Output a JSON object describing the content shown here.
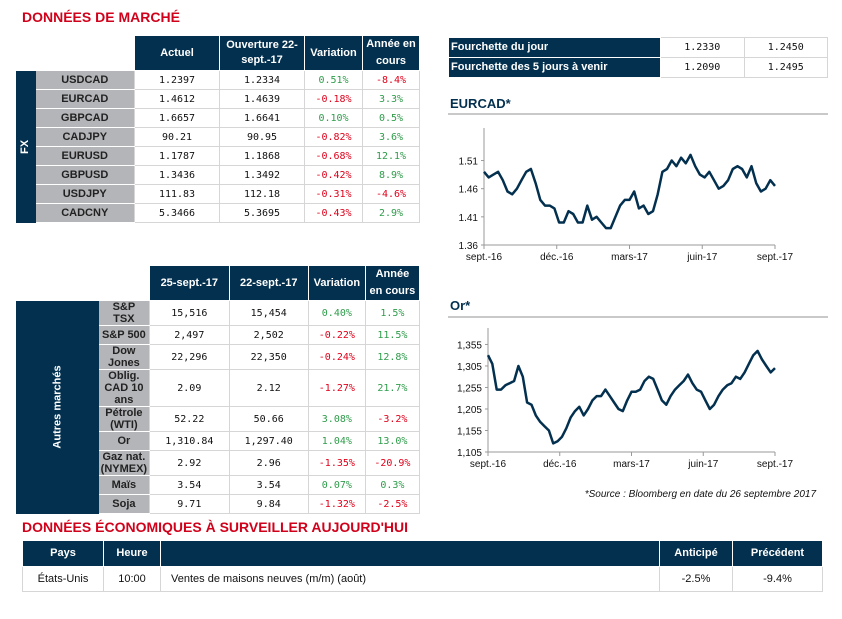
{
  "title": "DONNÉES DE MARCHÉ",
  "fx": {
    "side": "FX",
    "headers": [
      "Actuel",
      "Ouverture 22-sept.-17",
      "Variation",
      "Année en cours"
    ],
    "rows": [
      [
        "USDCAD",
        "1.2397",
        "1.2334",
        "0.51%",
        "-8.4%"
      ],
      [
        "EURCAD",
        "1.4612",
        "1.4639",
        "-0.18%",
        "3.3%"
      ],
      [
        "GBPCAD",
        "1.6657",
        "1.6641",
        "0.10%",
        "0.5%"
      ],
      [
        "CADJPY",
        "90.21",
        "90.95",
        "-0.82%",
        "3.6%"
      ],
      [
        "EURUSD",
        "1.1787",
        "1.1868",
        "-0.68%",
        "12.1%"
      ],
      [
        "GBPUSD",
        "1.3436",
        "1.3492",
        "-0.42%",
        "8.9%"
      ],
      [
        "USDJPY",
        "111.83",
        "112.18",
        "-0.31%",
        "-4.6%"
      ],
      [
        "CADCNY",
        "5.3466",
        "5.3695",
        "-0.43%",
        "2.9%"
      ]
    ]
  },
  "other": {
    "side": "Autres marchés",
    "headers": [
      "25-sept.-17",
      "22-sept.-17",
      "Variation",
      "Année en cours"
    ],
    "rows": [
      [
        "S&P TSX",
        "15,516",
        "15,454",
        "0.40%",
        "1.5%"
      ],
      [
        "S&P 500",
        "2,497",
        "2,502",
        "-0.22%",
        "11.5%"
      ],
      [
        "Dow Jones",
        "22,296",
        "22,350",
        "-0.24%",
        "12.8%"
      ],
      [
        "Oblig. CAD 10 ans",
        "2.09",
        "2.12",
        "-1.27%",
        "21.7%"
      ],
      [
        "Pétrole (WTI)",
        "52.22",
        "50.66",
        "3.08%",
        "-3.2%"
      ],
      [
        "Or",
        "1,310.84",
        "1,297.40",
        "1.04%",
        "13.0%"
      ],
      [
        "Gaz nat. (NYMEX)",
        "2.92",
        "2.96",
        "-1.35%",
        "-20.9%"
      ],
      [
        "Maïs",
        "3.54",
        "3.54",
        "0.07%",
        "0.3%"
      ],
      [
        "Soja",
        "9.71",
        "9.84",
        "-1.32%",
        "-2.5%"
      ]
    ]
  },
  "range": {
    "rows": [
      [
        "Fourchette du jour",
        "1.2330",
        "1.2450"
      ],
      [
        "Fourchette des 5 jours à venir",
        "1.2090",
        "1.2495"
      ]
    ]
  },
  "colors": {
    "navy": "#03304f",
    "red": "#d0021b",
    "green": "#2e9c4a"
  },
  "chart_data": [
    {
      "type": "line",
      "title": "EURCAD*",
      "xticks": [
        "sept.-16",
        "déc.-16",
        "mars-17",
        "juin-17",
        "sept.-17"
      ],
      "yticks": [
        "1.36",
        "1.41",
        "1.46",
        "1.51"
      ],
      "ylim": [
        1.36,
        1.55
      ],
      "values": [
        1.49,
        1.48,
        1.485,
        1.49,
        1.475,
        1.455,
        1.45,
        1.46,
        1.475,
        1.49,
        1.495,
        1.47,
        1.44,
        1.43,
        1.43,
        1.425,
        1.4,
        1.4,
        1.42,
        1.415,
        1.4,
        1.4,
        1.43,
        1.405,
        1.41,
        1.4,
        1.39,
        1.39,
        1.41,
        1.43,
        1.44,
        1.44,
        1.455,
        1.425,
        1.43,
        1.415,
        1.42,
        1.45,
        1.49,
        1.495,
        1.51,
        1.5,
        1.515,
        1.505,
        1.52,
        1.5,
        1.485,
        1.48,
        1.49,
        1.475,
        1.46,
        1.465,
        1.475,
        1.495,
        1.5,
        1.495,
        1.48,
        1.5,
        1.47,
        1.455,
        1.46,
        1.475,
        1.465
      ]
    },
    {
      "type": "line",
      "title": "Or*",
      "xticks": [
        "sept.-16",
        "déc.-16",
        "mars-17",
        "juin-17",
        "sept.-17"
      ],
      "yticks": [
        "1,105",
        "1,155",
        "1,205",
        "1,255",
        "1,305",
        "1,355"
      ],
      "ylim": [
        1105,
        1370
      ],
      "values": [
        1330,
        1310,
        1250,
        1250,
        1260,
        1265,
        1270,
        1305,
        1280,
        1220,
        1215,
        1190,
        1175,
        1165,
        1155,
        1125,
        1130,
        1140,
        1160,
        1185,
        1200,
        1210,
        1190,
        1205,
        1225,
        1235,
        1235,
        1250,
        1235,
        1220,
        1205,
        1200,
        1225,
        1245,
        1245,
        1250,
        1270,
        1280,
        1275,
        1250,
        1225,
        1215,
        1235,
        1250,
        1260,
        1270,
        1285,
        1265,
        1250,
        1245,
        1225,
        1205,
        1215,
        1235,
        1250,
        1260,
        1265,
        1280,
        1275,
        1290,
        1310,
        1330,
        1340,
        1320,
        1305,
        1290,
        1300
      ]
    }
  ],
  "source": "*Source : Bloomberg en date du  26 septembre 2017",
  "eco": {
    "title": "DONNÉES ÉCONOMIQUES À SURVEILLER AUJOURD'HUI",
    "headers": [
      "Pays",
      "Heure",
      "",
      "Anticipé",
      "Précédent"
    ],
    "rows": [
      [
        "États-Unis",
        "10:00",
        "Ventes de maisons neuves (m/m) (août)",
        "-2.5%",
        "-9.4%"
      ]
    ]
  }
}
